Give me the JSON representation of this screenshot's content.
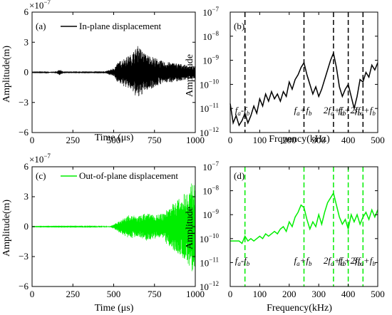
{
  "chart_data": [
    {
      "id": "a",
      "type": "line",
      "panel_label": "(a)",
      "legend": "In-plane displacement",
      "xlabel": "Time (μs)",
      "ylabel": "Amplitude(m)",
      "multiplier": "×10",
      "multiplier_exp": "−7",
      "x_ticks": [
        "0",
        "250",
        "500",
        "750",
        "1000"
      ],
      "y_ticks": [
        "6",
        "3",
        "0",
        "−3",
        "−6"
      ],
      "xlim": [
        0,
        1000
      ],
      "ylim": [
        -6,
        6
      ],
      "line_color": "#000000",
      "envelope": [
        {
          "x": 0,
          "amp": 0.02
        },
        {
          "x": 100,
          "amp": 0.03
        },
        {
          "x": 150,
          "amp": 0.1
        },
        {
          "x": 170,
          "amp": 0.3
        },
        {
          "x": 190,
          "amp": 0.08
        },
        {
          "x": 450,
          "amp": 0.1
        },
        {
          "x": 500,
          "amp": 0.4
        },
        {
          "x": 520,
          "amp": 0.9
        },
        {
          "x": 560,
          "amp": 1.4
        },
        {
          "x": 600,
          "amp": 1.7
        },
        {
          "x": 650,
          "amp": 2.7
        },
        {
          "x": 690,
          "amp": 1.9
        },
        {
          "x": 750,
          "amp": 1.5
        },
        {
          "x": 800,
          "amp": 1.1
        },
        {
          "x": 900,
          "amp": 0.9
        },
        {
          "x": 950,
          "amp": 0.7
        },
        {
          "x": 1000,
          "amp": 0.6
        }
      ]
    },
    {
      "id": "b",
      "type": "line",
      "panel_label": "(b)",
      "xlabel": "Frquency(kHz)",
      "ylabel": "Amplitude",
      "x_ticks": [
        "0",
        "100",
        "200",
        "300",
        "400",
        "500"
      ],
      "y_ticks": [
        {
          "base": "10",
          "exp": "−7"
        },
        {
          "base": "10",
          "exp": "−8"
        },
        {
          "base": "10",
          "exp": "−9"
        },
        {
          "base": "10",
          "exp": "−10"
        },
        {
          "base": "10",
          "exp": "−11"
        },
        {
          "base": "10",
          "exp": "−12"
        }
      ],
      "xlim": [
        0,
        500
      ],
      "ylim_log10": [
        -12,
        -7
      ],
      "y_scale": "log",
      "line_color": "#000000",
      "marker_color": "#000000",
      "markers_khz": [
        50,
        250,
        350,
        400,
        450
      ],
      "marker_labels": [
        {
          "x": 50,
          "text": "f",
          "sub": "a",
          "op": "-",
          "text2": "f",
          "sub2": "b"
        },
        {
          "x": 250,
          "text": "f",
          "sub": "a",
          "op": "+",
          "text2": "f",
          "sub2": "b"
        },
        {
          "x": 350,
          "text": "2f",
          "sub": "a",
          "op": "+",
          "text2": "f",
          "sub2": "b"
        },
        {
          "x": 400,
          "text": "f",
          "sub": "a",
          "op": "+",
          "text2": "2f",
          "sub2": "b"
        },
        {
          "x": 450,
          "text": "3f",
          "sub": "a",
          "op": "+",
          "text2": "f",
          "sub2": "b"
        }
      ],
      "spectrum": [
        {
          "x": 0,
          "log": -10.8
        },
        {
          "x": 10,
          "log": -11.6
        },
        {
          "x": 20,
          "log": -11.3
        },
        {
          "x": 30,
          "log": -11.7
        },
        {
          "x": 40,
          "log": -11.5
        },
        {
          "x": 50,
          "log": -11.2
        },
        {
          "x": 60,
          "log": -11.6
        },
        {
          "x": 70,
          "log": -11.3
        },
        {
          "x": 80,
          "log": -10.9
        },
        {
          "x": 90,
          "log": -11.2
        },
        {
          "x": 100,
          "log": -10.6
        },
        {
          "x": 110,
          "log": -10.9
        },
        {
          "x": 120,
          "log": -10.4
        },
        {
          "x": 130,
          "log": -10.7
        },
        {
          "x": 140,
          "log": -10.3
        },
        {
          "x": 150,
          "log": -10.6
        },
        {
          "x": 160,
          "log": -10.4
        },
        {
          "x": 170,
          "log": -10.7
        },
        {
          "x": 180,
          "log": -10.3
        },
        {
          "x": 190,
          "log": -10.5
        },
        {
          "x": 200,
          "log": -9.9
        },
        {
          "x": 210,
          "log": -10.2
        },
        {
          "x": 220,
          "log": -9.8
        },
        {
          "x": 230,
          "log": -9.6
        },
        {
          "x": 240,
          "log": -9.3
        },
        {
          "x": 250,
          "log": -9.1
        },
        {
          "x": 260,
          "log": -9.6
        },
        {
          "x": 270,
          "log": -10.0
        },
        {
          "x": 280,
          "log": -10.4
        },
        {
          "x": 290,
          "log": -10.1
        },
        {
          "x": 300,
          "log": -10.5
        },
        {
          "x": 310,
          "log": -10.2
        },
        {
          "x": 320,
          "log": -9.8
        },
        {
          "x": 330,
          "log": -9.4
        },
        {
          "x": 340,
          "log": -9.0
        },
        {
          "x": 350,
          "log": -8.7
        },
        {
          "x": 360,
          "log": -9.3
        },
        {
          "x": 370,
          "log": -10.1
        },
        {
          "x": 380,
          "log": -10.5
        },
        {
          "x": 390,
          "log": -10.2
        },
        {
          "x": 400,
          "log": -10.0
        },
        {
          "x": 410,
          "log": -10.5
        },
        {
          "x": 420,
          "log": -11.0
        },
        {
          "x": 430,
          "log": -10.5
        },
        {
          "x": 440,
          "log": -9.8
        },
        {
          "x": 450,
          "log": -9.9
        },
        {
          "x": 460,
          "log": -9.5
        },
        {
          "x": 470,
          "log": -9.7
        },
        {
          "x": 480,
          "log": -9.2
        },
        {
          "x": 490,
          "log": -9.4
        },
        {
          "x": 500,
          "log": -9.1
        }
      ]
    },
    {
      "id": "c",
      "type": "line",
      "panel_label": "(c)",
      "legend": "Out-of-plane displacement",
      "xlabel": "Time (μs)",
      "ylabel": "Amplitude(m)",
      "multiplier": "×10",
      "multiplier_exp": "−7",
      "x_ticks": [
        "0",
        "250",
        "500",
        "750",
        "1000"
      ],
      "y_ticks": [
        "6",
        "3",
        "0",
        "−3",
        "−6"
      ],
      "xlim": [
        0,
        1000
      ],
      "ylim": [
        -6,
        6
      ],
      "line_color": "#00ee00",
      "envelope": [
        {
          "x": 0,
          "amp": 0.02
        },
        {
          "x": 400,
          "amp": 0.03
        },
        {
          "x": 480,
          "amp": 0.05
        },
        {
          "x": 510,
          "amp": 0.3
        },
        {
          "x": 550,
          "amp": 0.8
        },
        {
          "x": 600,
          "amp": 1.2
        },
        {
          "x": 650,
          "amp": 1.0
        },
        {
          "x": 700,
          "amp": 1.4
        },
        {
          "x": 750,
          "amp": 1.2
        },
        {
          "x": 800,
          "amp": 1.3
        },
        {
          "x": 850,
          "amp": 2.2
        },
        {
          "x": 900,
          "amp": 2.8
        },
        {
          "x": 950,
          "amp": 3.6
        },
        {
          "x": 980,
          "amp": 4.6
        },
        {
          "x": 1000,
          "amp": 4.0
        }
      ]
    },
    {
      "id": "d",
      "type": "line",
      "panel_label": "(d)",
      "xlabel": "Frequency(kHz)",
      "ylabel": "Amplitude",
      "x_ticks": [
        "0",
        "100",
        "200",
        "300",
        "400",
        "500"
      ],
      "y_ticks": [
        {
          "base": "10",
          "exp": "−7"
        },
        {
          "base": "10",
          "exp": "−8"
        },
        {
          "base": "10",
          "exp": "−9"
        },
        {
          "base": "10",
          "exp": "−10"
        },
        {
          "base": "10",
          "exp": "−11"
        },
        {
          "base": "10",
          "exp": "−12"
        }
      ],
      "xlim": [
        0,
        500
      ],
      "ylim_log10": [
        -12,
        -7
      ],
      "y_scale": "log",
      "line_color": "#00ee00",
      "marker_color": "#00ee00",
      "markers_khz": [
        50,
        250,
        350,
        400,
        450
      ],
      "marker_labels": [
        {
          "x": 50,
          "text": "f",
          "sub": "a",
          "op": "-",
          "text2": "f",
          "sub2": "b"
        },
        {
          "x": 250,
          "text": "f",
          "sub": "a",
          "op": "+",
          "text2": "f",
          "sub2": "b"
        },
        {
          "x": 350,
          "text": "2f",
          "sub": "a",
          "op": "+",
          "text2": "f",
          "sub2": "b"
        },
        {
          "x": 400,
          "text": "f",
          "sub": "a",
          "op": "+",
          "text2": "2f",
          "sub2": "b"
        },
        {
          "x": 450,
          "text": "3f",
          "sub": "a",
          "op": "+",
          "text2": "f",
          "sub2": "b"
        }
      ],
      "spectrum": [
        {
          "x": 0,
          "log": -10.1
        },
        {
          "x": 10,
          "log": -10.1
        },
        {
          "x": 20,
          "log": -10.1
        },
        {
          "x": 30,
          "log": -10.1
        },
        {
          "x": 40,
          "log": -10.2
        },
        {
          "x": 50,
          "log": -9.9
        },
        {
          "x": 60,
          "log": -10.1
        },
        {
          "x": 70,
          "log": -10.0
        },
        {
          "x": 80,
          "log": -10.1
        },
        {
          "x": 90,
          "log": -10.0
        },
        {
          "x": 100,
          "log": -9.9
        },
        {
          "x": 110,
          "log": -10.0
        },
        {
          "x": 120,
          "log": -9.8
        },
        {
          "x": 130,
          "log": -9.9
        },
        {
          "x": 140,
          "log": -9.8
        },
        {
          "x": 150,
          "log": -9.7
        },
        {
          "x": 160,
          "log": -9.8
        },
        {
          "x": 170,
          "log": -9.6
        },
        {
          "x": 180,
          "log": -9.5
        },
        {
          "x": 190,
          "log": -9.7
        },
        {
          "x": 200,
          "log": -9.3
        },
        {
          "x": 210,
          "log": -9.5
        },
        {
          "x": 220,
          "log": -9.1
        },
        {
          "x": 230,
          "log": -8.9
        },
        {
          "x": 240,
          "log": -8.6
        },
        {
          "x": 250,
          "log": -8.7
        },
        {
          "x": 260,
          "log": -9.2
        },
        {
          "x": 270,
          "log": -9.6
        },
        {
          "x": 280,
          "log": -9.3
        },
        {
          "x": 290,
          "log": -9.5
        },
        {
          "x": 300,
          "log": -9.0
        },
        {
          "x": 310,
          "log": -9.4
        },
        {
          "x": 320,
          "log": -8.9
        },
        {
          "x": 330,
          "log": -8.5
        },
        {
          "x": 340,
          "log": -8.3
        },
        {
          "x": 350,
          "log": -8.1
        },
        {
          "x": 360,
          "log": -8.6
        },
        {
          "x": 370,
          "log": -9.1
        },
        {
          "x": 380,
          "log": -9.4
        },
        {
          "x": 390,
          "log": -9.2
        },
        {
          "x": 400,
          "log": -9.6
        },
        {
          "x": 410,
          "log": -9.0
        },
        {
          "x": 420,
          "log": -9.3
        },
        {
          "x": 430,
          "log": -9.0
        },
        {
          "x": 440,
          "log": -9.4
        },
        {
          "x": 450,
          "log": -9.1
        },
        {
          "x": 460,
          "log": -8.9
        },
        {
          "x": 470,
          "log": -9.2
        },
        {
          "x": 480,
          "log": -8.8
        },
        {
          "x": 490,
          "log": -9.1
        },
        {
          "x": 500,
          "log": -8.8
        }
      ]
    }
  ]
}
